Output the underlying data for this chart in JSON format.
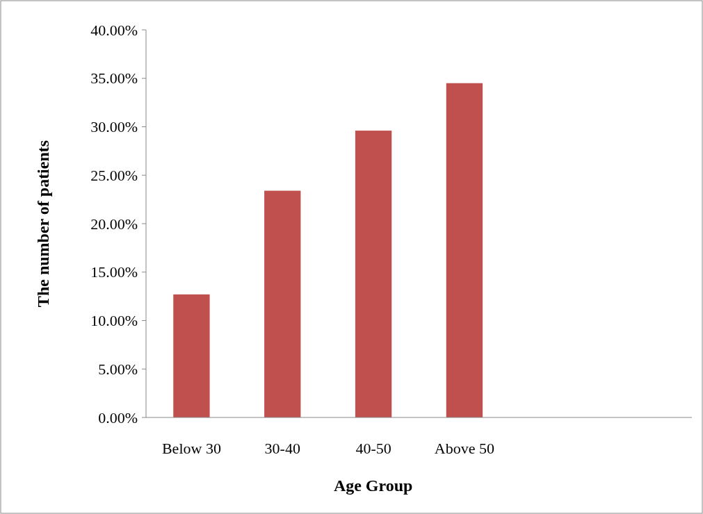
{
  "chart_data": {
    "type": "bar",
    "xlabel": "Age Group",
    "ylabel": "The number of patients",
    "categories": [
      "Below 30",
      "30-40",
      "40-50",
      "Above 50",
      null,
      null
    ],
    "values": [
      12.7,
      23.4,
      29.6,
      34.5,
      null,
      null
    ],
    "color": "#c0504d",
    "ylim": [
      0,
      40
    ],
    "yticks": [
      {
        "value": 0,
        "label": "0.00%"
      },
      {
        "value": 5,
        "label": "5.00%"
      },
      {
        "value": 10,
        "label": "10.00%"
      },
      {
        "value": 15,
        "label": "15.00%"
      },
      {
        "value": 20,
        "label": "20.00%"
      },
      {
        "value": 25,
        "label": "25.00%"
      },
      {
        "value": 30,
        "label": "30.00%"
      },
      {
        "value": 35,
        "label": "35.00%"
      },
      {
        "value": 40,
        "label": "40.00%"
      }
    ],
    "grid": false
  }
}
